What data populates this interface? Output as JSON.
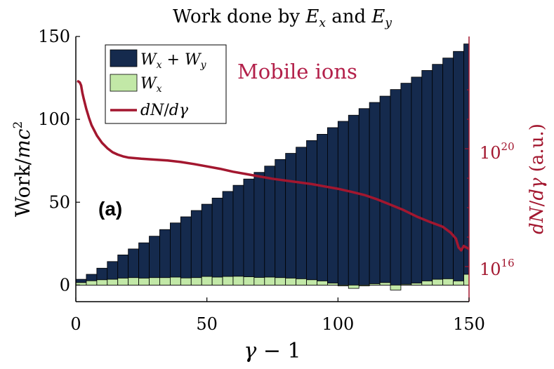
{
  "chart_data": {
    "type": "bar",
    "title": "Work done by E_x and E_y",
    "panel_label": "(a)",
    "annotation": "Mobile ions",
    "xlabel": "γ − 1",
    "ylabel_left": "Work/mc²",
    "ylabel_right": "dN/dγ (a.u.)",
    "xlim": [
      0,
      150
    ],
    "ylim_left": [
      -10,
      150
    ],
    "x_ticks": [
      "0",
      "50",
      "100",
      "150"
    ],
    "y_ticks_left": [
      "0",
      "50",
      "100",
      "150"
    ],
    "y_ticks_right": [
      "10^16",
      "10^20"
    ],
    "right_axis_scale": "log",
    "legend_position": "top-left",
    "grid": false,
    "colors": {
      "total_bars": "#152a4d",
      "wx_bars": "#c2e8a7",
      "dndg_line": "#a3172f",
      "right_axis": "#a3172f",
      "annotation": "#b3204a"
    },
    "bin_centers": [
      2,
      6,
      10,
      14,
      18,
      22,
      26,
      30,
      34,
      38,
      42,
      46,
      50,
      54,
      58,
      62,
      66,
      70,
      74,
      78,
      82,
      86,
      90,
      94,
      98,
      102,
      106,
      110,
      114,
      118,
      122,
      126,
      130,
      134,
      138,
      142,
      146,
      150
    ],
    "series": [
      {
        "name": "W_x + W_y",
        "values": [
          3.5,
          6.5,
          10.2,
          14.2,
          18.2,
          21.8,
          25.5,
          29.5,
          33.5,
          37.5,
          41.2,
          45,
          48.8,
          52.5,
          56.5,
          60.2,
          64,
          68,
          71.8,
          75.8,
          79.5,
          83.2,
          87.2,
          91,
          95,
          98.8,
          102.5,
          106.5,
          110.2,
          114,
          118,
          121.8,
          125.5,
          129.5,
          133.2,
          137,
          141,
          145.5
        ]
      },
      {
        "name": "W_x",
        "values": [
          1.5,
          2.6,
          3.2,
          3.5,
          4.2,
          4.5,
          4.2,
          4.5,
          4.5,
          4.8,
          4.3,
          4.5,
          5.2,
          4.8,
          5.2,
          5.3,
          5,
          4.6,
          4.8,
          4.5,
          4.2,
          3.8,
          3.2,
          2.5,
          1.2,
          -0.5,
          -2,
          -0.5,
          0.8,
          1.5,
          -3,
          0.5,
          1.2,
          2.5,
          3.5,
          3.8,
          2.5,
          6.5
        ]
      },
      {
        "name": "dN/dγ",
        "axis": "right",
        "x": [
          0.5,
          1,
          1.5,
          2,
          2.5,
          3,
          4,
          5,
          6,
          8,
          10,
          12,
          14,
          16,
          18,
          20,
          25,
          30,
          35,
          40,
          45,
          50,
          55,
          60,
          65,
          70,
          75,
          80,
          85,
          90,
          95,
          100,
          105,
          110,
          115,
          120,
          125,
          130,
          135,
          140,
          143,
          145,
          146,
          147,
          148,
          150
        ],
        "values_log10": [
          22.3,
          22.28,
          22.25,
          22.15,
          21.9,
          21.7,
          21.35,
          21.05,
          20.8,
          20.45,
          20.2,
          20.02,
          19.88,
          19.8,
          19.74,
          19.7,
          19.66,
          19.63,
          19.6,
          19.55,
          19.48,
          19.4,
          19.32,
          19.22,
          19.14,
          19.06,
          18.98,
          18.92,
          18.86,
          18.8,
          18.72,
          18.64,
          18.54,
          18.43,
          18.28,
          18.1,
          17.92,
          17.7,
          17.52,
          17.35,
          17.15,
          16.95,
          16.65,
          16.55,
          16.7,
          16.6
        ]
      }
    ]
  }
}
